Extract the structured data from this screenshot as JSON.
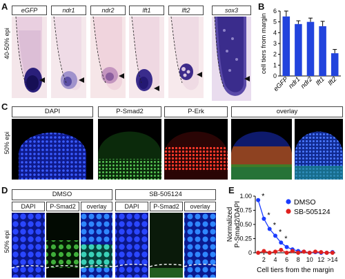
{
  "panel_a": {
    "label": "A",
    "side_label": "40-50% epi",
    "headers": [
      "eGFP",
      "ndr1",
      "ndr2",
      "lft1",
      "lft2",
      "sox3"
    ]
  },
  "panel_b": {
    "label": "B"
  },
  "panel_c": {
    "label": "C",
    "side_label": "50% epi",
    "headers": [
      "DAPI",
      "P-Smad2",
      "P-Erk",
      "overlay"
    ]
  },
  "panel_d": {
    "label": "D",
    "side_label": "50% epi",
    "groups": [
      "DMSO",
      "SB-505124"
    ],
    "sub_headers": [
      "DAPI",
      "P-Smad2",
      "overlay",
      "DAPI",
      "P-Smad2",
      "overlay"
    ]
  },
  "panel_e": {
    "label": "E"
  },
  "colors": {
    "blue": "#1a3cff",
    "red": "#e0201e",
    "bar": "#2244dd"
  },
  "chart_data": [
    {
      "type": "bar",
      "panel": "B",
      "categories": [
        "eGFP",
        "ndr1",
        "ndr2",
        "lft1",
        "lft2"
      ],
      "values": [
        5.5,
        4.8,
        5.0,
        4.6,
        2.1
      ],
      "errors": [
        0.5,
        0.3,
        0.35,
        0.45,
        0.35
      ],
      "ylabel": "cell tiers from margin",
      "ylim": [
        0,
        6
      ],
      "yticks": [
        "0",
        "1",
        "2",
        "3",
        "4",
        "5",
        "6"
      ],
      "grid": false
    },
    {
      "type": "line",
      "panel": "E",
      "x": [
        1,
        2,
        3,
        4,
        5,
        6,
        7,
        8,
        9,
        10,
        11,
        12,
        13,
        14
      ],
      "series": [
        {
          "name": "DMSO",
          "color": "#1a3cff",
          "values": [
            0.93,
            0.6,
            0.42,
            0.3,
            0.18,
            0.1,
            0.06,
            0.03,
            0.02,
            0.0,
            0.01,
            0.0,
            0.0,
            0.01
          ]
        },
        {
          "name": "SB-505124",
          "color": "#e0201e",
          "values": [
            0.0,
            0.03,
            0.0,
            0.02,
            0.05,
            0.0,
            0.03,
            0.0,
            0.02,
            0.0,
            0.02,
            0.01,
            0.0,
            0.0
          ]
        }
      ],
      "significance": [
        "*",
        "*",
        "*",
        "*",
        "*"
      ],
      "xlabel": "Cell tiers from the margin",
      "ylabel": "Normalized P-Smad2/DAPI",
      "xticks": [
        "2",
        "4",
        "6",
        "8",
        "10",
        "12",
        ">14"
      ],
      "yticks": [
        "0",
        "0.25",
        "0.50",
        "0.75",
        "1.00"
      ],
      "ylim": [
        0,
        1.0
      ],
      "legend_position": "top-right",
      "grid": false
    }
  ]
}
